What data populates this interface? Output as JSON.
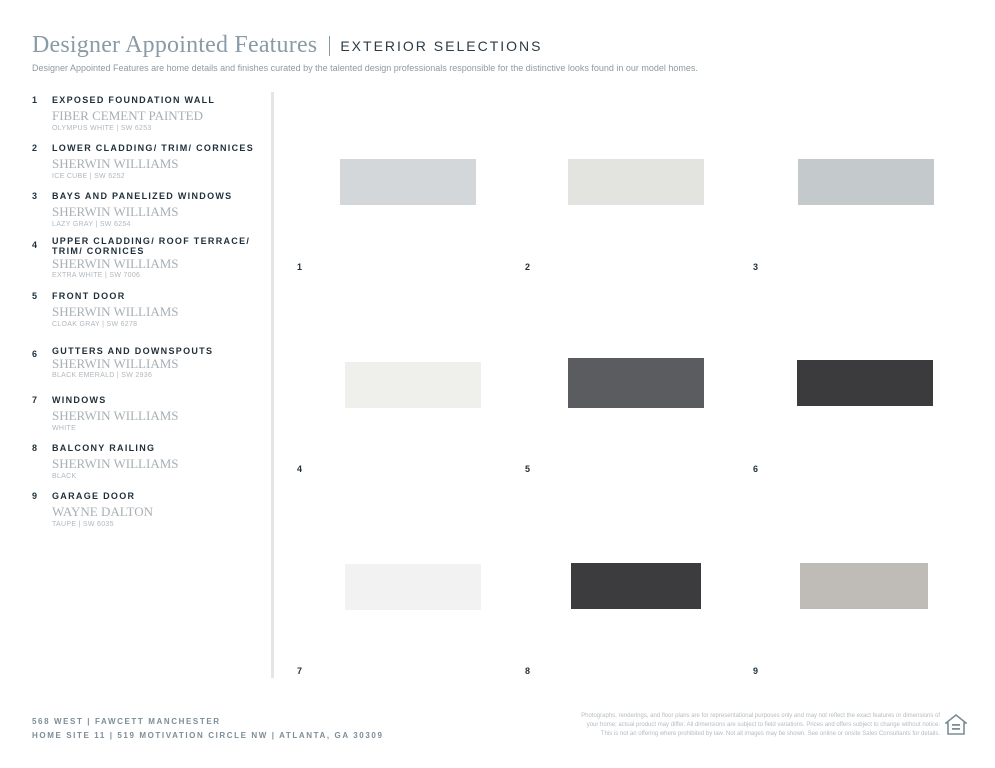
{
  "header": {
    "title": "Designer Appointed Features",
    "section": "EXTERIOR SELECTIONS",
    "subtitle": "Designer Appointed Features are home details and finishes curated by the talented design professionals responsible for the distinctive looks found in our model homes."
  },
  "features": [
    {
      "num": "1",
      "label": "EXPOSED FOUNDATION WALL",
      "brand": "FIBER CEMENT PAINTED",
      "color": "OLYMPUS WHITE  |  SW 6253"
    },
    {
      "num": "2",
      "label": "LOWER CLADDING/ TRIM/ CORNICES",
      "brand": "SHERWIN WILLIAMS",
      "color": "ICE CUBE  |  SW 6252"
    },
    {
      "num": "3",
      "label": "BAYS AND PANELIZED WINDOWS",
      "brand": "SHERWIN WILLIAMS",
      "color": "LAZY GRAY  |  SW 6254"
    },
    {
      "num": "4",
      "label": "UPPER CLADDING/ ROOF TERRACE/\nTRIM/ CORNICES",
      "brand": "SHERWIN WILLIAMS",
      "color": "EXTRA WHITE  |  SW 7006"
    },
    {
      "num": "5",
      "label": "FRONT DOOR",
      "brand": "SHERWIN WILLIAMS",
      "color": "CLOAK GRAY  |  SW 6278"
    },
    {
      "num": "6",
      "label": "GUTTERS AND DOWNSPOUTS",
      "brand": "SHERWIN WILLIAMS",
      "color": "BLACK EMERALD  |  SW 2936"
    },
    {
      "num": "7",
      "label": "WINDOWS",
      "brand": "SHERWIN WILLIAMS",
      "color": "WHITE"
    },
    {
      "num": "8",
      "label": "BALCONY RAILING",
      "brand": "SHERWIN WILLIAMS",
      "color": "BLACK"
    },
    {
      "num": "9",
      "label": "GARAGE DOOR",
      "brand": "WAYNE DALTON",
      "color": "TAUPE  |  SW 6035"
    }
  ],
  "swatches": [
    {
      "num": "1",
      "color": "#d3d7da"
    },
    {
      "num": "2",
      "color": "#e3e3e0"
    },
    {
      "num": "3",
      "color": "#c4c9cc"
    },
    {
      "num": "4",
      "color": "#efefec"
    },
    {
      "num": "5",
      "color": "#5b5c60"
    },
    {
      "num": "6",
      "color": "#3b3b3d"
    },
    {
      "num": "7",
      "color": "#f2f2f2"
    },
    {
      "num": "8",
      "color": "#3c3c3e"
    },
    {
      "num": "9",
      "color": "#bfbcb8"
    }
  ],
  "footer": {
    "line1": "568 WEST  |  FAWCETT MANCHESTER",
    "line2": "HOME SITE 11  |  519 MOTIVATION CIRCLE NW  |  ATLANTA, GA 30309",
    "disclaimer_1": "Photographs, renderings, and floor plans are for representational purposes only and may not reflect the exact features or dimensions of",
    "disclaimer_2": "your home; actual product may differ. All dimensions are subject to field variations. Prices and offers subject to change without notice.",
    "disclaimer_3": "This is not an offering where prohibited by law. Not all images may be shown. See online or onsite Sales Consultants for details.",
    "icon": "equal-housing-opportunity-icon"
  }
}
